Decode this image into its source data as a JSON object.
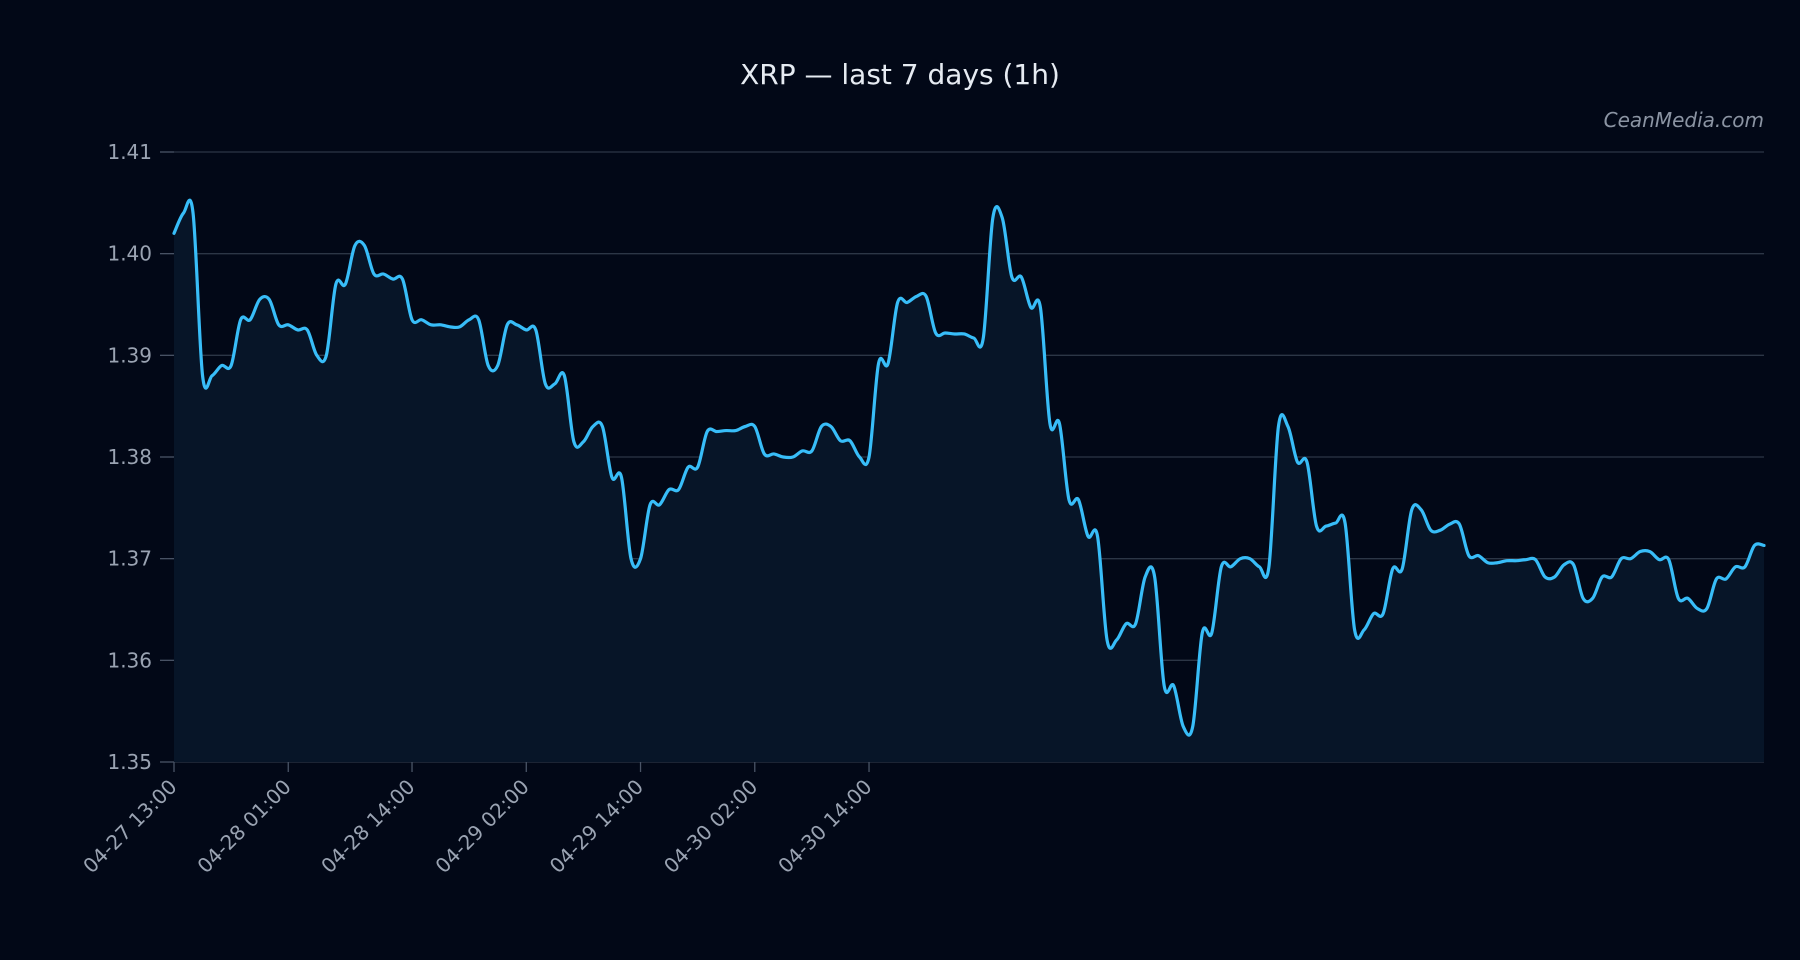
{
  "chart_data": {
    "type": "area",
    "title": "XRP — last 7 days (1h)",
    "watermark": "CeanMedia.com",
    "ylim": [
      1.35,
      1.41
    ],
    "yticks": [
      "1.35",
      "1.36",
      "1.37",
      "1.38",
      "1.39",
      "1.40",
      "1.41"
    ],
    "xtick_labels": [
      "04-27 13:00",
      "04-28 01:00",
      "04-28 14:00",
      "04-29 02:00",
      "04-29 14:00",
      "04-30 02:00",
      "04-30 14:00"
    ],
    "xtick_hours": [
      0,
      12,
      25,
      37,
      49,
      61,
      73
    ],
    "x_start": "04-27 13:00",
    "x_step_hours": 1,
    "grid": true,
    "line_color": "#38bdf8",
    "fill_color": "#071528",
    "background": "#020817",
    "series": [
      {
        "values": [
          1.402,
          1.404,
          1.404,
          1.388,
          1.388,
          1.389,
          1.389,
          1.3935,
          1.3935,
          1.3955,
          1.3955,
          1.393,
          1.393,
          1.3925,
          1.3925,
          1.39,
          1.39,
          1.397,
          1.397,
          1.4008,
          1.4008,
          1.398,
          1.398,
          1.3975,
          1.3975,
          1.3935,
          1.3935,
          1.393,
          1.393,
          1.3928,
          1.3928,
          1.3935,
          1.3935,
          1.389,
          1.389,
          1.393,
          1.393,
          1.3925,
          1.3925,
          1.3872,
          1.3872,
          1.388,
          1.3815,
          1.3815,
          1.383,
          1.383,
          1.378,
          1.378,
          1.37,
          1.37,
          1.3753,
          1.3753,
          1.3768,
          1.3768,
          1.379,
          1.379,
          1.3825,
          1.3825,
          1.3826,
          1.3826,
          1.383,
          1.383,
          1.3803,
          1.3803,
          1.38,
          1.38,
          1.3806,
          1.3806,
          1.383,
          1.383,
          1.3816,
          1.3816,
          1.38,
          1.38,
          1.3892,
          1.3892,
          1.3952,
          1.3952,
          1.3958,
          1.3958,
          1.3922,
          1.3922,
          1.3921,
          1.3921,
          1.3917,
          1.3917,
          1.4035,
          1.4035,
          1.3977,
          1.3977,
          1.3947,
          1.3947,
          1.3833,
          1.3833,
          1.3758,
          1.3758,
          1.3722,
          1.3722,
          1.362,
          1.362,
          1.3636,
          1.3636,
          1.3682,
          1.3682,
          1.3575,
          1.3575,
          1.3535,
          1.3535,
          1.3627,
          1.3627,
          1.3692,
          1.3692,
          1.37,
          1.37,
          1.3692,
          1.3692,
          1.383,
          1.383,
          1.3795,
          1.3795,
          1.3732,
          1.3732,
          1.3735,
          1.3735,
          1.363,
          1.363,
          1.3646,
          1.3646,
          1.369,
          1.369,
          1.3748,
          1.3748,
          1.3728,
          1.3728,
          1.3734,
          1.3734,
          1.3703,
          1.3703,
          1.3696,
          1.3696,
          1.3698,
          1.3698,
          1.3699,
          1.3699,
          1.3682,
          1.3682,
          1.3694,
          1.3694,
          1.3661,
          1.3661,
          1.3682,
          1.3682,
          1.37,
          1.37,
          1.3707,
          1.3707,
          1.3699,
          1.3699,
          1.3661,
          1.3661,
          1.3651,
          1.3651,
          1.368,
          1.368,
          1.3692,
          1.3692,
          1.3713,
          1.3713
        ]
      }
    ]
  }
}
